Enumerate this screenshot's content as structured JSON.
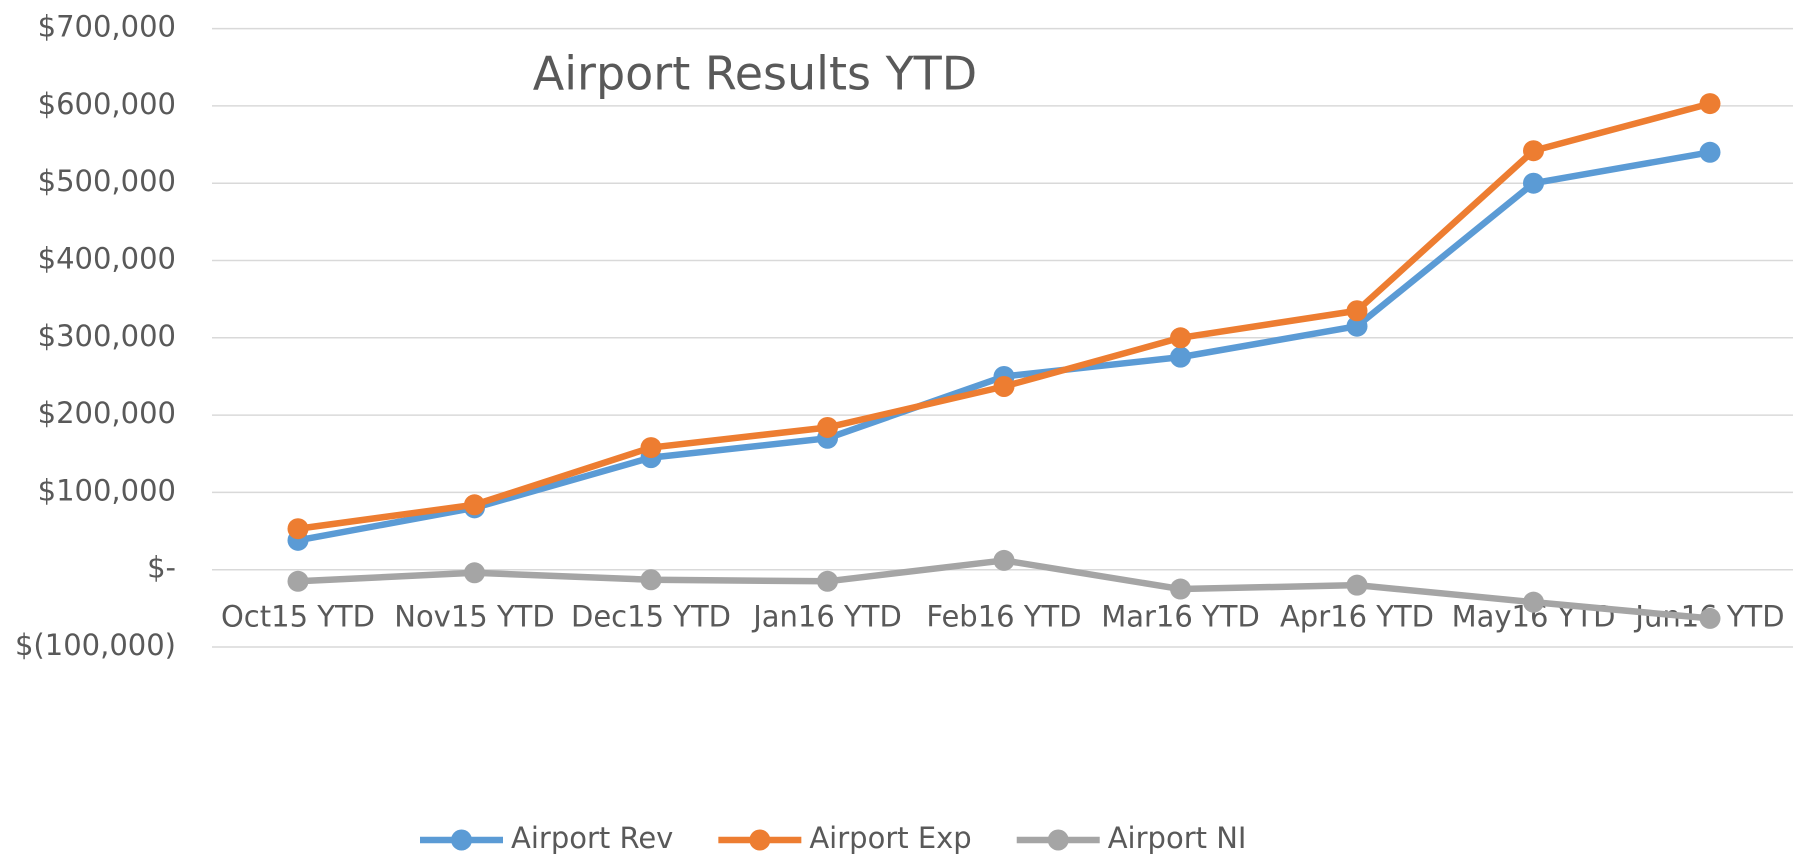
{
  "chart_data": {
    "type": "line",
    "title": "Airport Results YTD",
    "categories": [
      "Oct15 YTD",
      "Nov15 YTD",
      "Dec15 YTD",
      "Jan16 YTD",
      "Feb16 YTD",
      "Mar16 YTD",
      "Apr16 YTD",
      "May16 YTD",
      "Jun16 YTD"
    ],
    "series": [
      {
        "name": "Airport Rev",
        "color": "#5b9bd5",
        "values": [
          38000,
          80000,
          145000,
          170000,
          250000,
          275000,
          315000,
          500000,
          540000
        ]
      },
      {
        "name": "Airport Exp",
        "color": "#ed7d31",
        "values": [
          53000,
          84000,
          158000,
          184000,
          237000,
          300000,
          335000,
          542000,
          603000
        ]
      },
      {
        "name": "Airport NI",
        "color": "#a5a5a5",
        "values": [
          -15000,
          -4000,
          -13000,
          -15000,
          12000,
          -25000,
          -20000,
          -42000,
          -63000
        ]
      }
    ],
    "ylim": [
      -100000,
      700000
    ],
    "yticks": [
      {
        "value": -100000,
        "label": "$(100,000)"
      },
      {
        "value": 0,
        "label": "$-"
      },
      {
        "value": 100000,
        "label": "$100,000"
      },
      {
        "value": 200000,
        "label": "$200,000"
      },
      {
        "value": 300000,
        "label": "$300,000"
      },
      {
        "value": 400000,
        "label": "$400,000"
      },
      {
        "value": 500000,
        "label": "$500,000"
      },
      {
        "value": 600000,
        "label": "$600,000"
      },
      {
        "value": 700000,
        "label": "$700,000"
      }
    ],
    "grid": true,
    "legend": "bottom"
  }
}
